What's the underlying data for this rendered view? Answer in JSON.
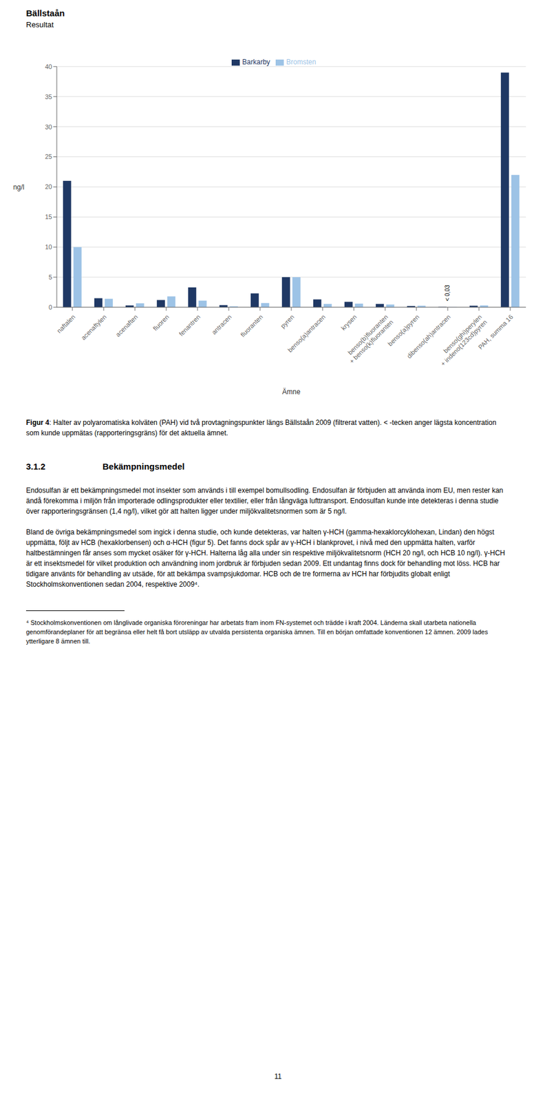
{
  "chart_data": {
    "type": "bar",
    "title": "Bällstaån",
    "subtitle": "Resultat",
    "categories": [
      "naftalen",
      "acenaftylen",
      "acenaften",
      "fluoren",
      "fenantren",
      "antracen",
      "fluoranten",
      "pyren",
      "benso(a)antracen",
      "krysen",
      "benso(b)fluoranten\n+ benso(k)fluoranten",
      "benso(a)pyren",
      "dibenso(ah)antracen",
      "benso(ghi)perylen\n+ indeno(123cd)pyren",
      "PAH, summa 16"
    ],
    "series": [
      {
        "name": "Barkarby",
        "color": "#1F3864",
        "values": [
          21.0,
          1.5,
          0.3,
          1.2,
          3.3,
          0.35,
          2.3,
          5.0,
          1.3,
          0.9,
          0.55,
          0.2,
          0.05,
          0.25,
          39.0
        ]
      },
      {
        "name": "Bromsten",
        "color": "#9DC3E6",
        "values": [
          10.0,
          1.4,
          0.65,
          1.8,
          1.1,
          0.15,
          0.7,
          5.0,
          0.55,
          0.6,
          0.45,
          0.25,
          0.03,
          0.3,
          22.0
        ]
      }
    ],
    "ylabel": "ng/l",
    "xlabel": "Ämne",
    "ylim": [
      0,
      40
    ],
    "yticks": [
      0,
      5,
      10,
      15,
      20,
      25,
      30,
      35,
      40
    ],
    "grid": true,
    "legend": "upper center",
    "annotations": [
      {
        "text": "< 0,03",
        "category": "dibenso(ah)antracen",
        "y": 1.0
      }
    ]
  },
  "caption_bold": "Figur 4",
  "caption": ": Halter av polyaromatiska kolväten (PAH) vid två provtagningspunkter längs Bällstaån 2009 (filtrerat vatten). < -tecken anger lägsta koncentration som kunde uppmätas (rapporteringsgräns) för det aktuella ämnet.",
  "section_number": "3.1.2",
  "section_title": "Bekämpningsmedel",
  "paragraphs": [
    "Endosulfan är ett bekämpningsmedel mot insekter som används i till exempel bomullsodling. Endosulfan är förbjuden att använda inom EU, men rester kan ändå förekomma i miljön från importerade odlingsprodukter eller textilier, eller från långväga lufttransport. Endosulfan kunde inte detekteras i denna studie över rapporteringsgränsen (1,4 ng/l), vilket gör att halten ligger under miljökvalitetsnormen som är 5 ng/l.",
    "Bland de övriga bekämpningsmedel som ingick i denna studie, och kunde detekteras, var halten γ-HCH (gamma-hexaklorcyklohexan, Lindan) den högst uppmätta, följt av HCB (hexaklorbensen) och α-HCH (figur 5). Det fanns dock spår av γ-HCH i blankprovet, i nivå med den uppmätta halten, varför haltbestämningen får anses som mycket osäker för γ-HCH. Halterna låg alla under sin respektive miljökvalitetsnorm (HCH 20 ng/l, och HCB 10 ng/l). γ-HCH är ett insektsmedel för vilket produktion och användning inom jordbruk är förbjuden sedan 2009. Ett undantag finns dock för behandling mot löss. HCB har tidigare använts för behandling av utsäde, för att bekämpa svampsjukdomar. HCB och de tre formerna av HCH har förbjudits globalt enligt Stockholmskonventionen sedan 2004, respektive 2009⁴."
  ],
  "footnote": "⁴ Stockholmskonventionen om långlivade organiska föroreningar har arbetats fram inom FN-systemet och trädde i kraft 2004. Länderna skall utarbeta nationella genomförandeplaner för att begränsa eller helt få bort utsläpp av utvalda persistenta organiska ämnen. Till en början omfattade konventionen 12 ämnen. 2009 lades ytterligare 8 ämnen till.",
  "page_number": "11"
}
